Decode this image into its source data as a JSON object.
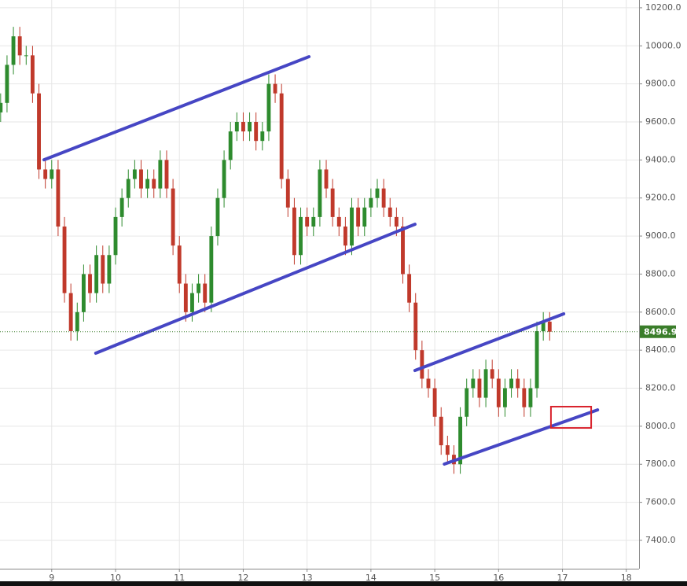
{
  "chart_data": {
    "type": "candlestick",
    "x": [
      8.2,
      8.3,
      8.4,
      8.5,
      8.6,
      8.7,
      8.8,
      8.9,
      9.0,
      9.1,
      9.2,
      9.3,
      9.4,
      9.5,
      9.6,
      9.7,
      9.8,
      9.9,
      10.0,
      10.1,
      10.2,
      10.3,
      10.4,
      10.5,
      10.6,
      10.7,
      10.8,
      10.9,
      11.0,
      11.1,
      11.2,
      11.3,
      11.4,
      11.5,
      11.6,
      11.7,
      11.8,
      11.9,
      12.0,
      12.1,
      12.2,
      12.3,
      12.4,
      12.5,
      12.6,
      12.7,
      12.8,
      12.9,
      13.0,
      13.1,
      13.2,
      13.3,
      13.4,
      13.5,
      13.6,
      13.7,
      13.8,
      13.9,
      14.0,
      14.1,
      14.2,
      14.3,
      14.4,
      14.5,
      14.6,
      14.7,
      14.8,
      14.9,
      15.0,
      15.1,
      15.2,
      15.3,
      15.4,
      15.5,
      15.6,
      15.7,
      15.8,
      15.9,
      16.0,
      16.1,
      16.2,
      16.3,
      16.4,
      16.5,
      16.6,
      16.7,
      16.8
    ],
    "open": [
      9650,
      9700,
      9900,
      10050,
      9950,
      9950,
      9750,
      9350,
      9300,
      9350,
      9050,
      8700,
      8500,
      8600,
      8800,
      8700,
      8900,
      8750,
      8900,
      9100,
      9200,
      9300,
      9350,
      9250,
      9300,
      9250,
      9400,
      9250,
      8950,
      8750,
      8600,
      8700,
      8750,
      8650,
      9000,
      9200,
      9400,
      9550,
      9600,
      9550,
      9600,
      9500,
      9550,
      9800,
      9750,
      9300,
      9150,
      8900,
      9100,
      9050,
      9100,
      9350,
      9250,
      9100,
      9050,
      8950,
      9150,
      9050,
      9150,
      9200,
      9250,
      9150,
      9100,
      9050,
      8800,
      8650,
      8400,
      8250,
      8200,
      8050,
      7900,
      7850,
      7800,
      8050,
      8200,
      8250,
      8150,
      8300,
      8250,
      8100,
      8200,
      8250,
      8200,
      8100,
      8200,
      8500,
      8550
    ],
    "high": [
      9750,
      9950,
      10100,
      10100,
      10000,
      10000,
      9800,
      9400,
      9400,
      9400,
      9100,
      8750,
      8650,
      8850,
      8850,
      8950,
      8950,
      8950,
      9150,
      9250,
      9350,
      9400,
      9400,
      9350,
      9350,
      9450,
      9450,
      9300,
      9000,
      8800,
      8750,
      8800,
      8800,
      9050,
      9250,
      9450,
      9600,
      9650,
      9650,
      9650,
      9650,
      9600,
      9850,
      9850,
      9800,
      9350,
      9200,
      9150,
      9150,
      9150,
      9400,
      9400,
      9300,
      9150,
      9100,
      9200,
      9200,
      9200,
      9250,
      9300,
      9300,
      9200,
      9150,
      9100,
      8850,
      8700,
      8450,
      8300,
      8250,
      8100,
      7950,
      7900,
      8100,
      8250,
      8300,
      8300,
      8350,
      8350,
      8300,
      8250,
      8300,
      8300,
      8250,
      8250,
      8550,
      8600,
      8600
    ],
    "low": [
      9600,
      9650,
      9850,
      9900,
      9900,
      9700,
      9300,
      9250,
      9250,
      9000,
      8650,
      8450,
      8450,
      8550,
      8650,
      8650,
      8700,
      8700,
      8850,
      9050,
      9150,
      9250,
      9200,
      9200,
      9200,
      9200,
      9200,
      8900,
      8700,
      8550,
      8550,
      8650,
      8600,
      8600,
      8950,
      9150,
      9350,
      9500,
      9500,
      9500,
      9450,
      9450,
      9500,
      9700,
      9250,
      9100,
      8850,
      8850,
      9000,
      9000,
      9050,
      9200,
      9050,
      9000,
      8900,
      8900,
      9000,
      9000,
      9100,
      9150,
      9100,
      9050,
      9000,
      8750,
      8600,
      8350,
      8200,
      8150,
      8000,
      7850,
      7800,
      7750,
      7750,
      8000,
      8150,
      8100,
      8100,
      8200,
      8050,
      8050,
      8150,
      8150,
      8050,
      8050,
      8150,
      8450,
      8450
    ],
    "close": [
      9700,
      9900,
      10050,
      9950,
      9950,
      9750,
      9350,
      9300,
      9350,
      9050,
      8700,
      8500,
      8600,
      8800,
      8700,
      8900,
      8750,
      8900,
      9100,
      9200,
      9300,
      9350,
      9250,
      9300,
      9250,
      9400,
      9250,
      8950,
      8750,
      8600,
      8700,
      8750,
      8650,
      9000,
      9200,
      9400,
      9550,
      9600,
      9550,
      9600,
      9500,
      9550,
      9800,
      9750,
      9300,
      9150,
      8900,
      9100,
      9050,
      9100,
      9350,
      9250,
      9100,
      9050,
      8950,
      9150,
      9050,
      9150,
      9200,
      9250,
      9150,
      9100,
      9050,
      8800,
      8650,
      8400,
      8250,
      8200,
      8050,
      7900,
      7850,
      7800,
      8050,
      8200,
      8250,
      8150,
      8300,
      8250,
      8100,
      8200,
      8250,
      8200,
      8100,
      8200,
      8500,
      8550,
      8496.9
    ],
    "up_color": "#2e8b2e",
    "down_color": "#c0392b",
    "last_price": 8496.9,
    "last_price_color": "#3a7d2a",
    "trendline_color": "#4646c4",
    "trendlines": [
      {
        "x": [
          8.88,
          13.03
        ],
        "y": [
          9401,
          9943
        ]
      },
      {
        "x": [
          9.69,
          14.69
        ],
        "y": [
          8384,
          9062
        ]
      },
      {
        "x": [
          14.69,
          17.02
        ],
        "y": [
          8293,
          8591
        ]
      },
      {
        "x": [
          15.15,
          17.55
        ],
        "y": [
          7801,
          8086
        ]
      }
    ],
    "zone": {
      "x": [
        16.82,
        17.45
      ],
      "y": [
        7991,
        8103
      ]
    },
    "zone_color": "#d9232d",
    "xlim": [
      8.19,
      18.2
    ],
    "ylim": [
      7251,
      10241
    ],
    "xticks": [
      9,
      10,
      11,
      12,
      13,
      14,
      15,
      16,
      17,
      18
    ],
    "yticks": [
      {
        "value": 7400,
        "label": "7400.0"
      },
      {
        "value": 7600,
        "label": "7600.0"
      },
      {
        "value": 7800,
        "label": "7800.0"
      },
      {
        "value": 8000,
        "label": "8000.0"
      },
      {
        "value": 8200,
        "label": "8200.0"
      },
      {
        "value": 8400,
        "label": "8400.0"
      },
      {
        "value": 8600,
        "label": "8600.0"
      },
      {
        "value": 8800,
        "label": "8800.0"
      },
      {
        "value": 9000,
        "label": "9000.0"
      },
      {
        "value": 9200,
        "label": "9200.0"
      },
      {
        "value": 9400,
        "label": "9400.0"
      },
      {
        "value": 9600,
        "label": "9600.0"
      },
      {
        "value": 9800,
        "label": "9800.0"
      },
      {
        "value": 10000,
        "label": "10000.0"
      },
      {
        "value": 10200,
        "label": "10200.0"
      }
    ],
    "grid": true
  }
}
